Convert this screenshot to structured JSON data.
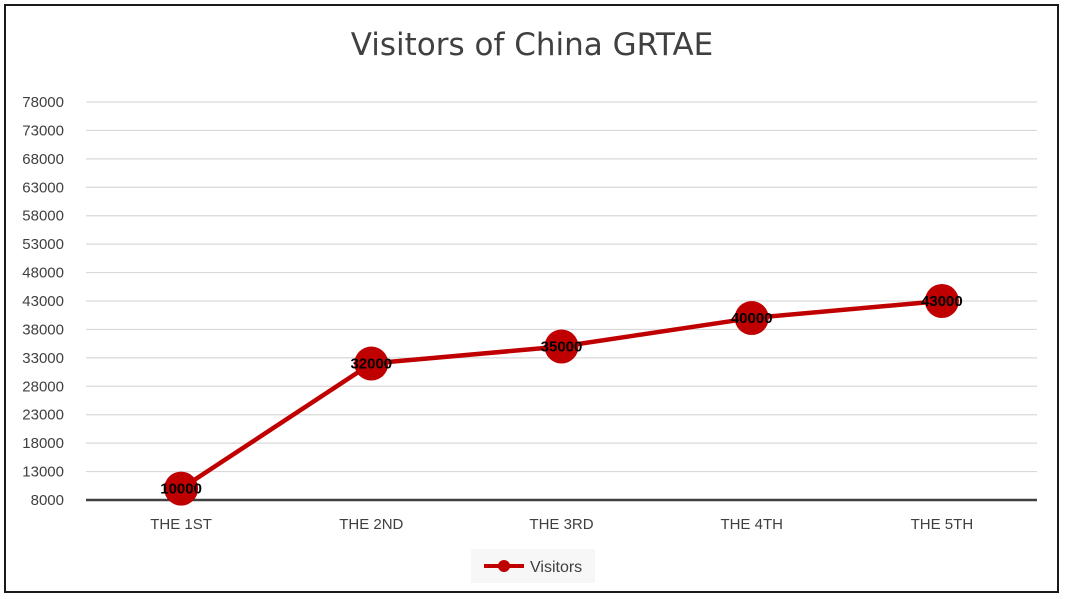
{
  "chart_data": {
    "type": "line",
    "title": "Visitors of China GRTAE",
    "categories": [
      "THE 1ST",
      "THE 2ND",
      "THE 3RD",
      "THE 4TH",
      "THE 5TH"
    ],
    "series": [
      {
        "name": "Visitors",
        "values": [
          10000,
          32000,
          35000,
          40000,
          43000
        ],
        "color": "#c00000"
      }
    ],
    "data_labels": [
      "10000",
      "32000",
      "35000",
      "40000",
      "43000"
    ],
    "y_ticks": [
      8000,
      13000,
      18000,
      23000,
      28000,
      33000,
      38000,
      43000,
      48000,
      53000,
      58000,
      63000,
      68000,
      73000,
      78000
    ],
    "ylim": [
      8000,
      78000
    ],
    "grid": true,
    "legend": "bottom",
    "colors": {
      "series": "#c00000",
      "gridline": "#d9d9d9",
      "axis": "#404040",
      "text": "#404040"
    }
  }
}
